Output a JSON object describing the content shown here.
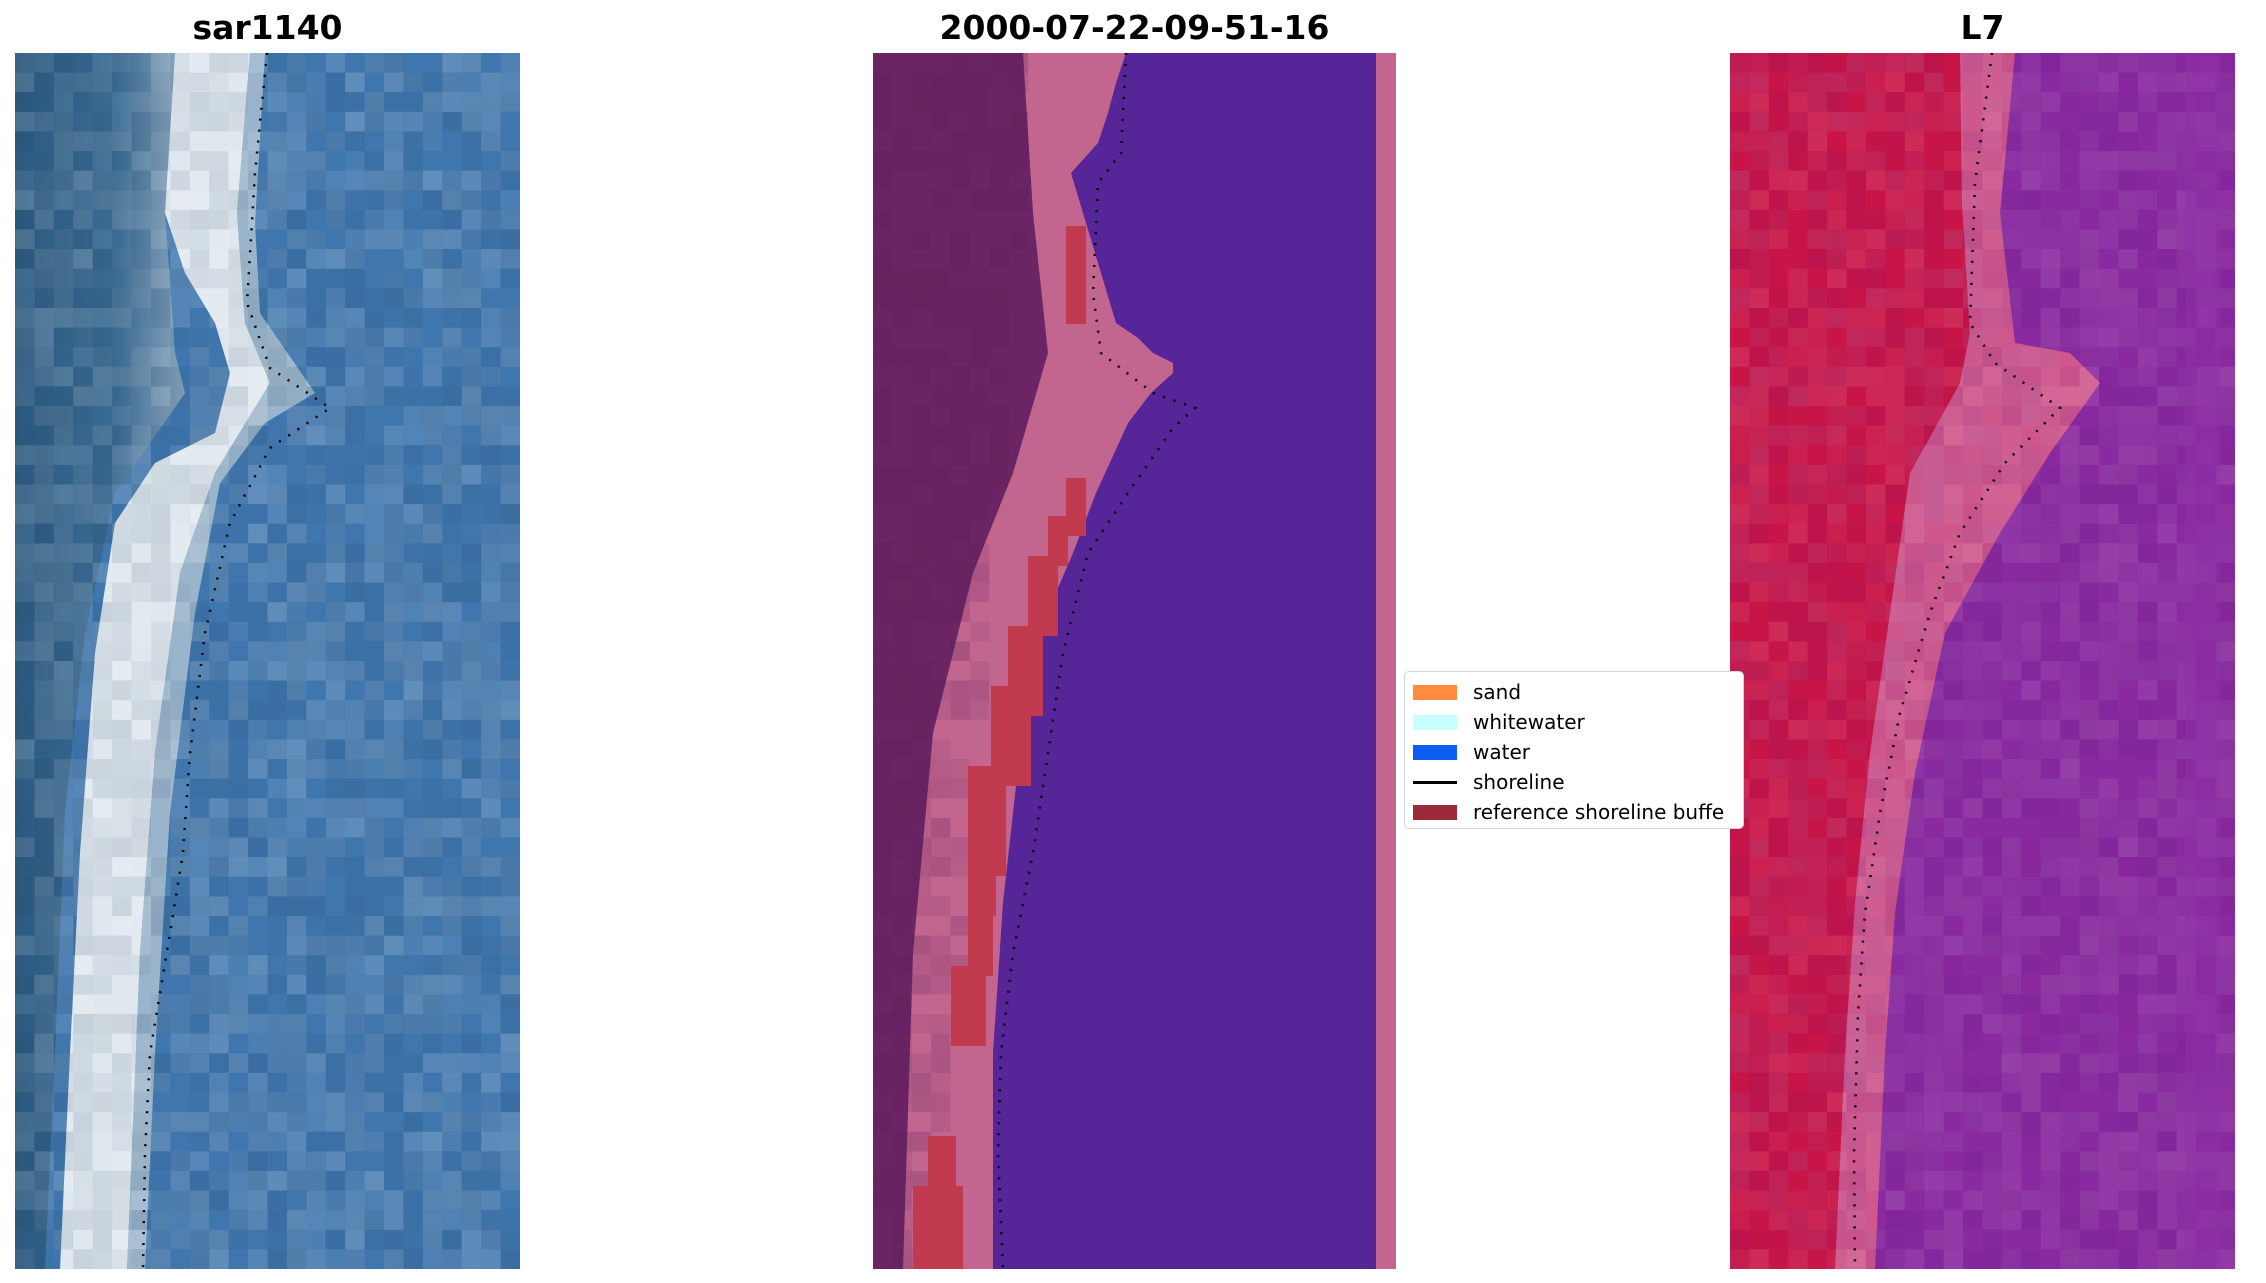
{
  "panels": {
    "left": {
      "title": "sar1140"
    },
    "middle": {
      "title": "2000-07-22-09-51-16"
    },
    "right": {
      "title": "L7"
    }
  },
  "legend": {
    "items": [
      {
        "label": "sand",
        "kind": "patch",
        "color": "#ff8c3f"
      },
      {
        "label": "whitewater",
        "kind": "patch",
        "color": "#c9ffff"
      },
      {
        "label": "water",
        "kind": "patch",
        "color": "#0b5ef0"
      },
      {
        "label": "shoreline",
        "kind": "line",
        "color": "#000000"
      },
      {
        "label": "reference shoreline buffe",
        "kind": "patch",
        "color": "#9b2b38"
      }
    ]
  },
  "colors": {
    "sar_water": "#3f76ad",
    "sar_land": "#2d5f86",
    "sar_white": "#eef2f4",
    "class_water": "#562597",
    "class_land_dark": "#6b2564",
    "class_land_pink": "#c2668f",
    "class_buffer": "#c23a4d",
    "l7_land": "#c81547",
    "l7_water": "#8a2aa0",
    "l7_transition": "#d55c8a"
  }
}
